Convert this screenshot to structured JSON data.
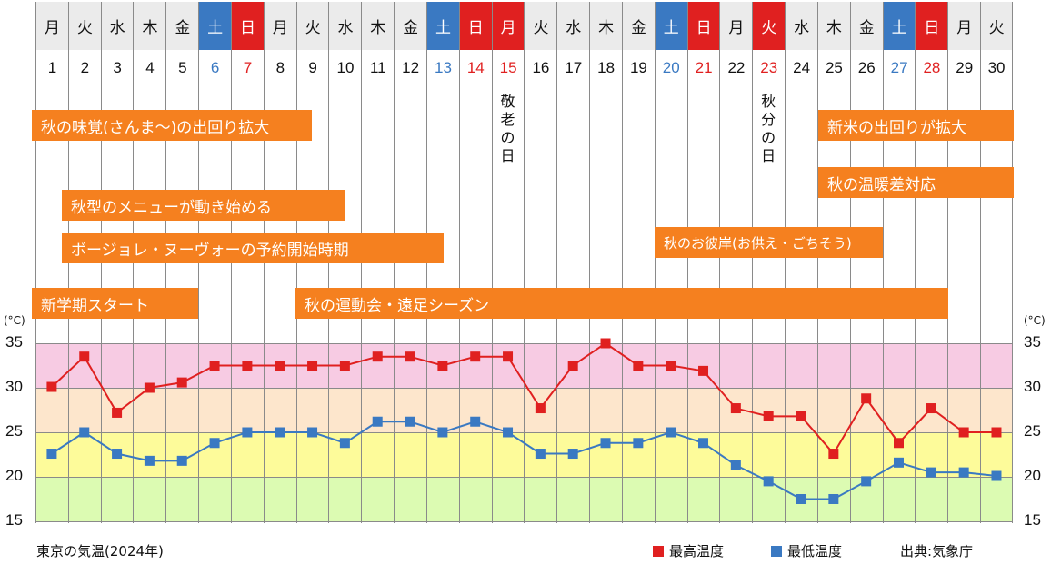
{
  "chart_data": {
    "type": "line",
    "title": "東京の気温(2024年)",
    "xlabel": "",
    "ylabel": "(°C)",
    "ylim": [
      15,
      35
    ],
    "yticks": [
      35,
      30,
      25,
      20,
      15
    ],
    "grid": true,
    "legend_position": "bottom-right",
    "x": [
      1,
      2,
      3,
      4,
      5,
      6,
      7,
      8,
      9,
      10,
      11,
      12,
      13,
      14,
      15,
      16,
      17,
      18,
      19,
      20,
      21,
      22,
      23,
      24,
      25,
      26,
      27,
      28,
      29,
      30
    ],
    "weekdays": [
      "月",
      "火",
      "水",
      "木",
      "金",
      "土",
      "日",
      "月",
      "火",
      "水",
      "木",
      "金",
      "土",
      "日",
      "月",
      "火",
      "水",
      "木",
      "金",
      "土",
      "日",
      "月",
      "火",
      "水",
      "木",
      "金",
      "土",
      "日",
      "月",
      "火"
    ],
    "day_types": [
      "wd",
      "wd",
      "wd",
      "wd",
      "wd",
      "sat",
      "sun",
      "wd",
      "wd",
      "wd",
      "wd",
      "wd",
      "sat",
      "sun",
      "sun",
      "wd",
      "wd",
      "wd",
      "wd",
      "sat",
      "sun",
      "wd",
      "sun",
      "wd",
      "wd",
      "wd",
      "sat",
      "sun",
      "wd",
      "wd"
    ],
    "series": [
      {
        "name": "最高温度",
        "color": "#e02020",
        "values": [
          30.1,
          33.5,
          27.2,
          30.0,
          30.6,
          32.5,
          32.5,
          32.5,
          32.5,
          32.5,
          33.5,
          33.5,
          32.5,
          33.5,
          33.5,
          27.7,
          32.5,
          35.0,
          32.5,
          32.5,
          31.9,
          27.7,
          26.8,
          26.8,
          22.6,
          28.8,
          23.8,
          27.7,
          25.0,
          25.0
        ]
      },
      {
        "name": "最低温度",
        "color": "#3a79c2",
        "values": [
          22.6,
          25.0,
          22.6,
          21.8,
          21.8,
          23.8,
          25.0,
          25.0,
          25.0,
          23.8,
          26.2,
          26.2,
          25.0,
          26.2,
          25.0,
          22.6,
          22.6,
          23.8,
          23.8,
          25.0,
          23.8,
          21.3,
          19.5,
          17.5,
          17.5,
          19.5,
          21.6,
          20.5,
          20.5,
          20.1
        ]
      }
    ],
    "bands": [
      {
        "from": 30,
        "to": 35,
        "color": "#f7cbe3"
      },
      {
        "from": 25,
        "to": 30,
        "color": "#fde6cc"
      },
      {
        "from": 20,
        "to": 25,
        "color": "#fdfb9a"
      },
      {
        "from": 15,
        "to": 20,
        "color": "#dcfbb2"
      }
    ],
    "annotations": [
      {
        "text": "秋の味覚(さんま〜)の出回り拡大",
        "start_day": 1,
        "end_day": 9
      },
      {
        "text": "秋型のメニューが動き始める",
        "start_day": 2,
        "end_day": 10
      },
      {
        "text": "ボージョレ・ヌーヴォーの予約開始時期",
        "start_day": 2,
        "end_day": 13
      },
      {
        "text": "新学期スタート",
        "start_day": 1,
        "end_day": 5
      },
      {
        "text": "秋の運動会・遠足シーズン",
        "start_day": 9,
        "end_day": 28
      },
      {
        "text": "秋のお彼岸(お供え・ごちそう)",
        "start_day": 20,
        "end_day": 26
      },
      {
        "text": "新米の出回りが拡大",
        "start_day": 25,
        "end_day": 30
      },
      {
        "text": "秋の温暖差対応",
        "start_day": 25,
        "end_day": 30
      }
    ],
    "holidays": [
      {
        "day": 15,
        "text": "敬老の日"
      },
      {
        "day": 23,
        "text": "秋分の日"
      }
    ]
  },
  "labels": {
    "unit_left": "(°C)",
    "unit_right": "(°C)",
    "footer_title": "東京の気温(2024年)",
    "legend_max": "最高温度",
    "legend_min": "最低温度",
    "source": "出典:気象庁"
  }
}
